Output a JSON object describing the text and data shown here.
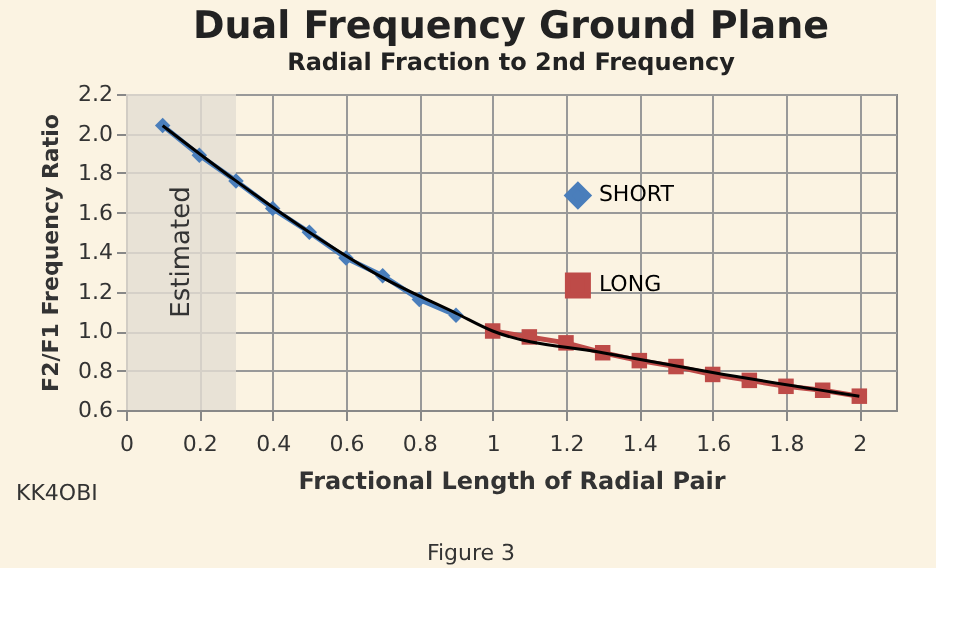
{
  "chart_data": {
    "type": "line",
    "title": "Dual Frequency Ground Plane",
    "subtitle": "Radial  Fraction to 2nd Frequency",
    "xlabel": "Fractional Length of Radial Pair",
    "ylabel": "F2/F1  Frequency Ratio",
    "xlim": [
      0,
      2.1
    ],
    "xticks": [
      0,
      0.2,
      0.4,
      0.6,
      0.8,
      1,
      1.2,
      1.4,
      1.6,
      1.8,
      2
    ],
    "ylim": [
      0.6,
      2.2
    ],
    "yticks": [
      {
        "value": 0.6,
        "label": "0.6"
      },
      {
        "value": 0.8,
        "label": "0.8"
      },
      {
        "value": 1,
        "label": "1.0"
      },
      {
        "value": 1.2,
        "label": "1.2"
      },
      {
        "value": 1.4,
        "label": "1.4"
      },
      {
        "value": 1.6,
        "label": "1.6"
      },
      {
        "value": 1.8,
        "label": "1.8"
      },
      {
        "value": 2,
        "label": "2.0"
      },
      {
        "value": 2.2,
        "label": "2.2"
      }
    ],
    "grid": true,
    "legend": "right",
    "series": [
      {
        "name": "SHORT",
        "color": "#4a7ebb",
        "marker": "diamond",
        "x": [
          0.1,
          0.2,
          0.3,
          0.4,
          0.5,
          0.6,
          0.7,
          0.8,
          0.9
        ],
        "values": [
          2.04,
          1.89,
          1.76,
          1.62,
          1.5,
          1.37,
          1.28,
          1.16,
          1.08
        ]
      },
      {
        "name": "LONG",
        "color": "#be4b48",
        "marker": "square",
        "x": [
          1,
          1.1,
          1.2,
          1.3,
          1.4,
          1.5,
          1.6,
          1.7,
          1.8,
          1.9,
          2
        ],
        "values": [
          1.0,
          0.97,
          0.94,
          0.89,
          0.85,
          0.82,
          0.78,
          0.75,
          0.72,
          0.7,
          0.67
        ]
      },
      {
        "type": "line",
        "color": "#000000",
        "marker": "none",
        "x": [
          0.1,
          0.3,
          0.5,
          0.7,
          0.9,
          1.0,
          1.3,
          1.6,
          2.0
        ],
        "values": [
          2.04,
          1.76,
          1.5,
          1.27,
          1.09,
          1.0,
          0.89,
          0.79,
          0.67
        ]
      }
    ],
    "bands": [
      {
        "axis": "x",
        "from": 0,
        "to": 0.3,
        "label": "Estimated",
        "color": "#e3ddd3"
      }
    ],
    "annotations": [
      "KK4OBI",
      "Figure 3"
    ]
  }
}
